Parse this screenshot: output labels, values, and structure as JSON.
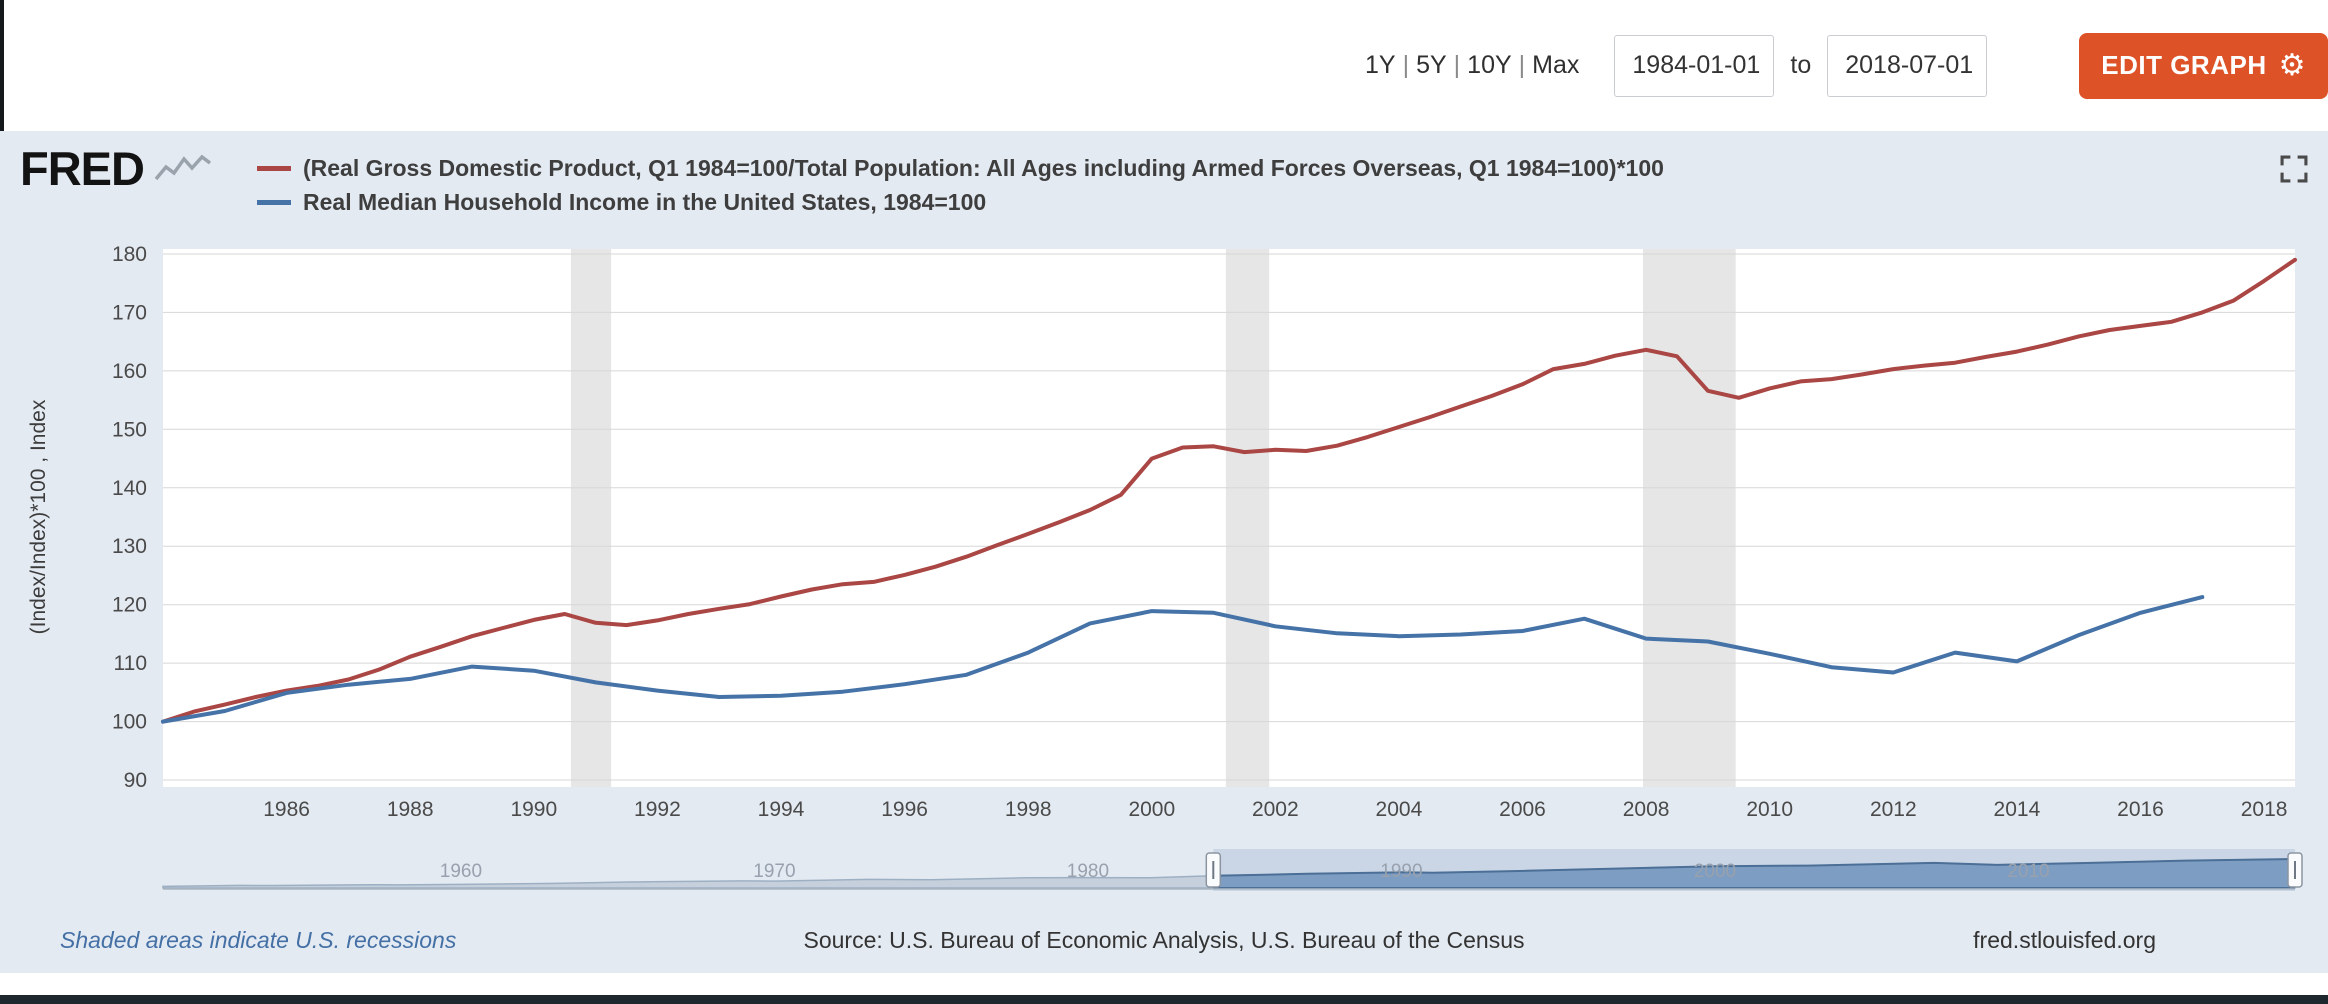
{
  "toolbar": {
    "range_options": [
      "1Y",
      "5Y",
      "10Y",
      "Max"
    ],
    "range_separator": "|",
    "date_from": "1984-01-01",
    "date_to": "2018-07-01",
    "to_label": "to",
    "edit_graph_label": "EDIT GRAPH",
    "edit_graph_color": "#dd5226"
  },
  "header": {
    "logo_text": "FRED",
    "legend": [
      {
        "label": "(Real Gross Domestic Product, Q1 1984=100/Total Population: All Ages including Armed Forces Overseas, Q1 1984=100)*100"
      },
      {
        "label": "Real Median Household Income in the United States, 1984=100"
      }
    ]
  },
  "chart_data": {
    "type": "line",
    "title": "",
    "xlabel": "",
    "ylabel": "(Index/Index)*100 , Index",
    "xlim": [
      1984,
      2018.5
    ],
    "ylim": [
      90,
      180
    ],
    "yticks": [
      90,
      100,
      110,
      120,
      130,
      140,
      150,
      160,
      170,
      180
    ],
    "xticks": [
      1986,
      1988,
      1990,
      1992,
      1994,
      1996,
      1998,
      2000,
      2002,
      2004,
      2006,
      2008,
      2010,
      2012,
      2014,
      2016,
      2018
    ],
    "grid": true,
    "legend_position": "top",
    "plot_background": "#ffffff",
    "recession_color": "#e6e6e6",
    "recessions": [
      [
        1990.6,
        1991.25
      ],
      [
        2001.2,
        2001.9
      ],
      [
        2007.95,
        2009.45
      ]
    ],
    "series": [
      {
        "name": "(Real Gross Domestic Product, Q1 1984=100/Total Population: All Ages including Armed Forces Overseas, Q1 1984=100)*100",
        "color": "#aa4643",
        "x_start": 1984,
        "x_step": 0.5,
        "values": [
          100.0,
          101.7,
          102.9,
          104.2,
          105.3,
          106.1,
          107.2,
          108.9,
          111.1,
          112.8,
          114.6,
          116.0,
          117.4,
          118.4,
          116.9,
          116.5,
          117.3,
          118.4,
          119.3,
          120.1,
          121.4,
          122.6,
          123.5,
          123.9,
          125.1,
          126.5,
          128.2,
          130.2,
          132.1,
          134.1,
          136.2,
          138.8,
          145.0,
          146.9,
          147.1,
          146.1,
          146.5,
          146.3,
          147.2,
          148.7,
          150.4,
          152.1,
          153.9,
          155.7,
          157.7,
          160.3,
          161.2,
          162.6,
          163.6,
          162.5,
          156.6,
          155.4,
          157.0,
          158.2,
          158.6,
          159.4,
          160.3,
          160.9,
          161.4,
          162.4,
          163.3,
          164.5,
          165.9,
          167.0,
          167.7,
          168.4,
          170.0,
          172.0,
          175.4,
          179.0
        ]
      },
      {
        "name": "Real Median Household Income in the United States, 1984=100",
        "color": "#4572a7",
        "x_start": 1984,
        "x_step": 1,
        "values": [
          100.0,
          101.8,
          104.9,
          106.3,
          107.3,
          109.4,
          108.7,
          106.7,
          105.3,
          104.2,
          104.4,
          105.1,
          106.4,
          108.0,
          111.8,
          116.8,
          118.9,
          118.6,
          116.3,
          115.1,
          114.6,
          114.9,
          115.5,
          117.6,
          114.2,
          113.7,
          111.6,
          109.3,
          108.4,
          111.8,
          110.3,
          114.8,
          118.6,
          121.3
        ]
      }
    ]
  },
  "overview": {
    "x_range": [
      1950.5,
      2018.5
    ],
    "selection": [
      1984,
      2018.5
    ],
    "labels": [
      1960,
      1970,
      1980,
      1990,
      2000,
      2010
    ],
    "points": [
      [
        1950.5,
        0.05
      ],
      [
        1953,
        0.08
      ],
      [
        1954,
        0.075
      ],
      [
        1957,
        0.1
      ],
      [
        1958,
        0.095
      ],
      [
        1960,
        0.11
      ],
      [
        1963,
        0.14
      ],
      [
        1966,
        0.19
      ],
      [
        1969,
        0.215
      ],
      [
        1970,
        0.21
      ],
      [
        1973,
        0.26
      ],
      [
        1975,
        0.25
      ],
      [
        1978,
        0.31
      ],
      [
        1980,
        0.315
      ],
      [
        1982,
        0.31
      ],
      [
        1984,
        0.37
      ],
      [
        1987,
        0.43
      ],
      [
        1990,
        0.475
      ],
      [
        1991,
        0.465
      ],
      [
        1994,
        0.52
      ],
      [
        1997,
        0.59
      ],
      [
        2000,
        0.66
      ],
      [
        2003,
        0.68
      ],
      [
        2007,
        0.76
      ],
      [
        2009,
        0.7
      ],
      [
        2012,
        0.76
      ],
      [
        2015,
        0.83
      ],
      [
        2018.5,
        0.88
      ]
    ]
  },
  "footer": {
    "recession_note": "Shaded areas indicate U.S. recessions",
    "source": "Source: U.S. Bureau of Economic Analysis, U.S. Bureau of the Census",
    "site": "fred.stlouisfed.org"
  }
}
